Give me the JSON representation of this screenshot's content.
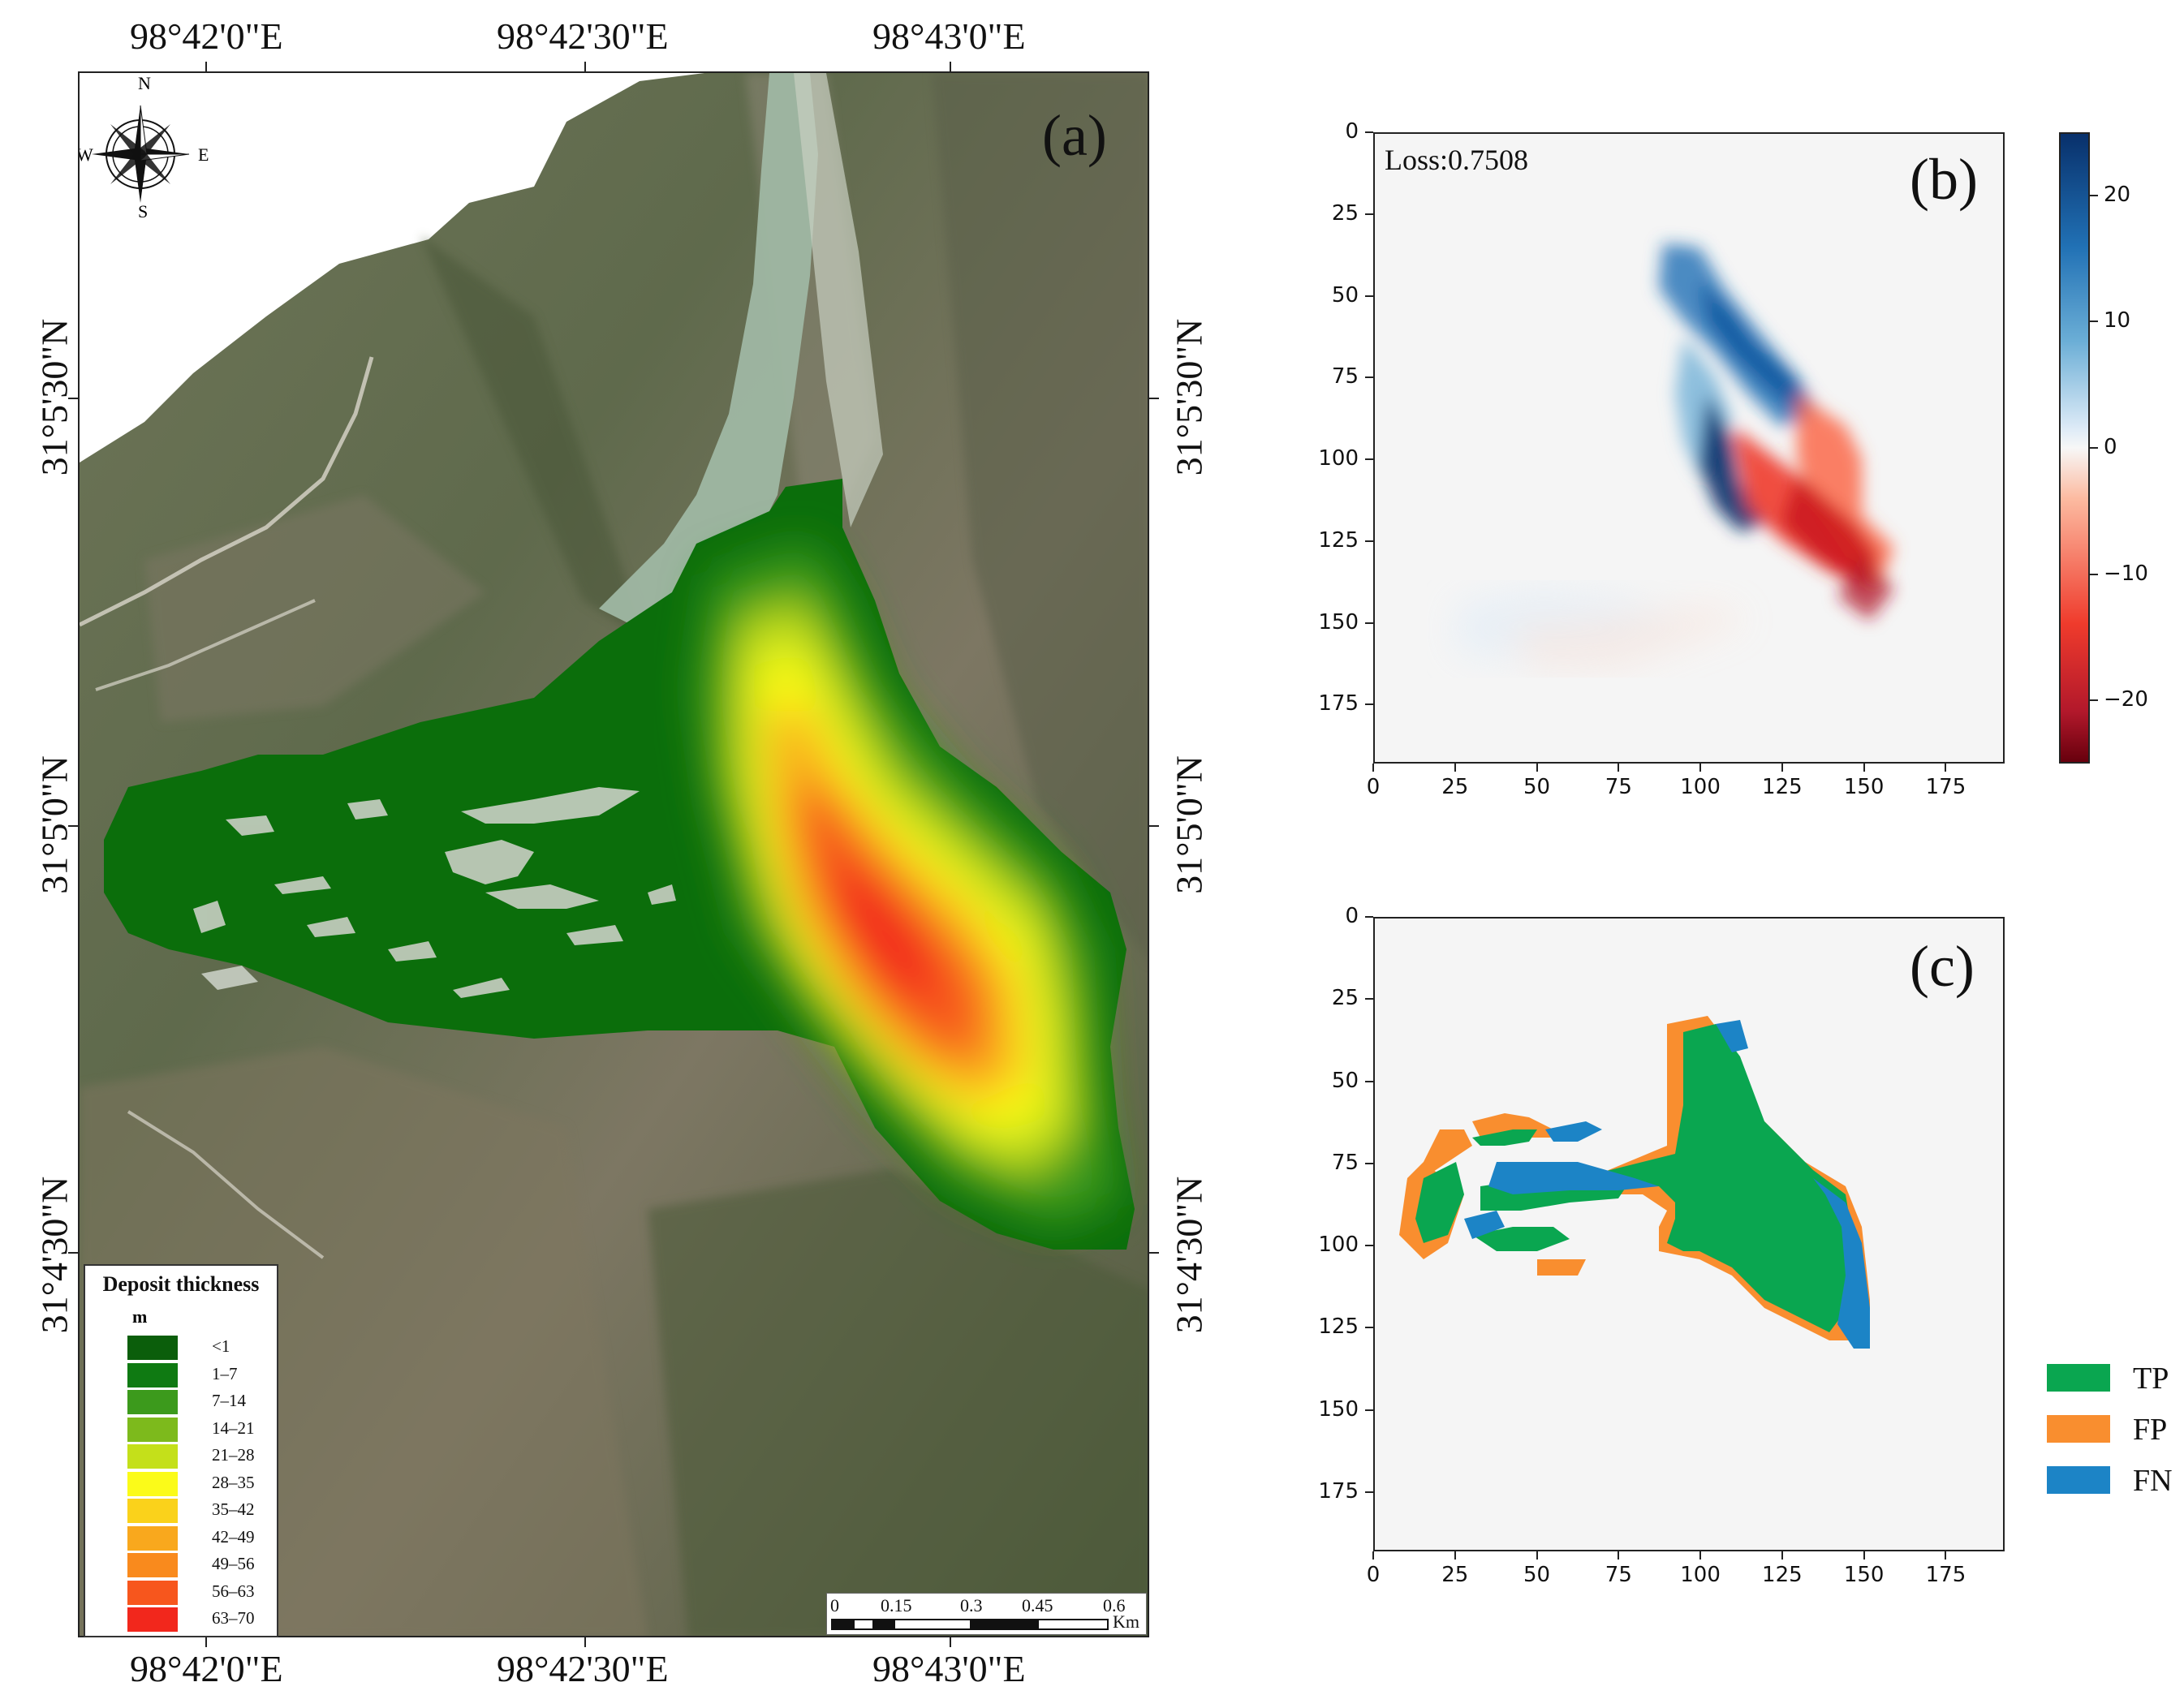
{
  "panel_a": {
    "label": "(a)",
    "top_lon_labels": [
      "98°42'0\"E",
      "98°42'30\"E",
      "98°43'0\"E"
    ],
    "bottom_lon_labels": [
      "98°42'0\"E",
      "98°42'30\"E",
      "98°43'0\"E"
    ],
    "left_lat_labels": [
      "31°5'30\"N",
      "31°5'0\"N",
      "31°4'30\"N"
    ],
    "right_lat_labels": [
      "31°5'30\"N",
      "31°5'0\"N",
      "31°4'30\"N"
    ],
    "compass": {
      "n": "N",
      "s": "S",
      "e": "E",
      "w": "W"
    },
    "legend": {
      "title": "Deposit thickness",
      "unit": "m",
      "items": [
        {
          "label": "<1",
          "color": "#0b5e0b"
        },
        {
          "label": "1–7",
          "color": "#0f7a12"
        },
        {
          "label": "7–14",
          "color": "#3c9a1c"
        },
        {
          "label": "14–21",
          "color": "#7dba1c"
        },
        {
          "label": "21–28",
          "color": "#c4e01a"
        },
        {
          "label": "28–35",
          "color": "#fbfb19"
        },
        {
          "label": "35–42",
          "color": "#fad21b"
        },
        {
          "label": "42–49",
          "color": "#f9a81d"
        },
        {
          "label": "49–56",
          "color": "#f98a1d"
        },
        {
          "label": "56–63",
          "color": "#f7561d"
        },
        {
          "label": "63–70",
          "color": "#f2271c"
        }
      ]
    },
    "scale_bar": {
      "ticks": [
        "0",
        "0.15",
        "0.3",
        "0.45",
        "0.6"
      ],
      "unit": "Km"
    }
  },
  "panel_b": {
    "label": "(b)",
    "loss_text": "Loss:0.7508",
    "x_ticks": [
      "0",
      "25",
      "50",
      "75",
      "100",
      "125",
      "150",
      "175"
    ],
    "y_ticks": [
      "0",
      "25",
      "50",
      "75",
      "100",
      "125",
      "150",
      "175"
    ],
    "colorbar_ticks": [
      "20",
      "10",
      "0",
      "−10",
      "−20"
    ]
  },
  "panel_c": {
    "label": "(c)",
    "x_ticks": [
      "0",
      "25",
      "50",
      "75",
      "100",
      "125",
      "150",
      "175"
    ],
    "y_ticks": [
      "0",
      "25",
      "50",
      "75",
      "100",
      "125",
      "150",
      "175"
    ],
    "legend": [
      {
        "label": "TP",
        "color": "#0aa650"
      },
      {
        "label": "FP",
        "color": "#f98e2f"
      },
      {
        "label": "FN",
        "color": "#1c84c6"
      }
    ]
  }
}
